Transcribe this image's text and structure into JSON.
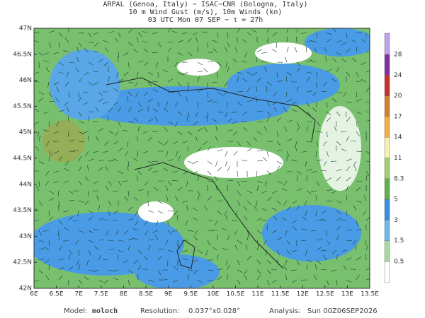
{
  "header": {
    "lines": [
      "ARPAL (Genoa, Italy)  −  ISAC−CNR (Bologna, Italy)",
      "10 m Wind Gust (m/s), 10m Winds (kn)",
      "03 UTC Mon 07 SEP  −  τ = 27h"
    ]
  },
  "map": {
    "lon_labels": [
      "6E",
      "6.5E",
      "7E",
      "7.5E",
      "8E",
      "8.5E",
      "9E",
      "9.5E",
      "10E",
      "10.5E",
      "11E",
      "11.5E",
      "12E",
      "12.5E",
      "13E",
      "13.5E"
    ],
    "lat_labels": [
      "47N",
      "46.5N",
      "46N",
      "45.5N",
      "45N",
      "44.5N",
      "44N",
      "43.5N",
      "43N",
      "42.5N",
      "42N"
    ]
  },
  "colorbar": {
    "levels": [
      0.5,
      1.5,
      3,
      5,
      8.3,
      11,
      14,
      17,
      20,
      24,
      28
    ]
  },
  "footer": {
    "model_label": "Model:",
    "model": "moloch",
    "resolution_label": "Resolution:",
    "resolution": "0.037°x0.028°",
    "analysis_label": "Analysis:",
    "analysis": "Sun 00Z06SEP2026"
  }
}
